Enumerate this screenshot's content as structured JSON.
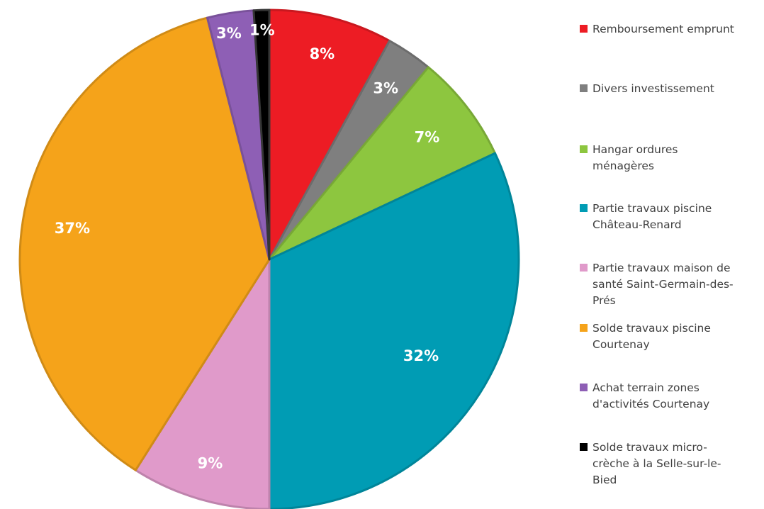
{
  "chart_data": {
    "type": "pie",
    "title": "",
    "slices": [
      {
        "label": "Remboursement emprunt",
        "legend_text": "Remboursement emprunt",
        "value": 8,
        "data_label": "8%",
        "color": "#ED1C24"
      },
      {
        "label": "Divers investissement",
        "legend_text": "Divers investissement",
        "value": 3,
        "data_label": "3%",
        "color": "#7F7F7F"
      },
      {
        "label": "Hangar ordures ménagères",
        "legend_text": "Hangar ordures\nménagères",
        "value": 7,
        "data_label": "7%",
        "color": "#8DC63F"
      },
      {
        "label": "Partie travaux piscine Château-Renard",
        "legend_text": "Partie travaux piscine\nChâteau-Renard",
        "value": 32,
        "data_label": "32%",
        "color": "#009CB4"
      },
      {
        "label": "Partie travaux maison de santé Saint-Germain-des-Prés",
        "legend_text": "Partie travaux maison de\nsanté Saint-Germain-des-\nPrés",
        "value": 9,
        "data_label": "9%",
        "color": "#E09ACA"
      },
      {
        "label": "Solde travaux piscine Courtenay",
        "legend_text": "Solde travaux piscine\nCourtenay",
        "value": 37,
        "data_label": "37%",
        "color": "#F5A31A"
      },
      {
        "label": "Achat terrain zones d'activités Courtenay",
        "legend_text": "Achat terrain zones\nd'activités Courtenay",
        "value": 3,
        "data_label": "3%",
        "color": "#8E5FB5"
      },
      {
        "label": "Solde travaux micro-crèche à la Selle-sur-le-Bied",
        "legend_text": "Solde travaux micro-\ncrèche à la Selle-sur-le-\nBied",
        "value": 1,
        "data_label": "1%",
        "color": "#000000"
      }
    ],
    "legend_position": "right",
    "start_angle": "12 o'clock",
    "direction": "clockwise"
  }
}
